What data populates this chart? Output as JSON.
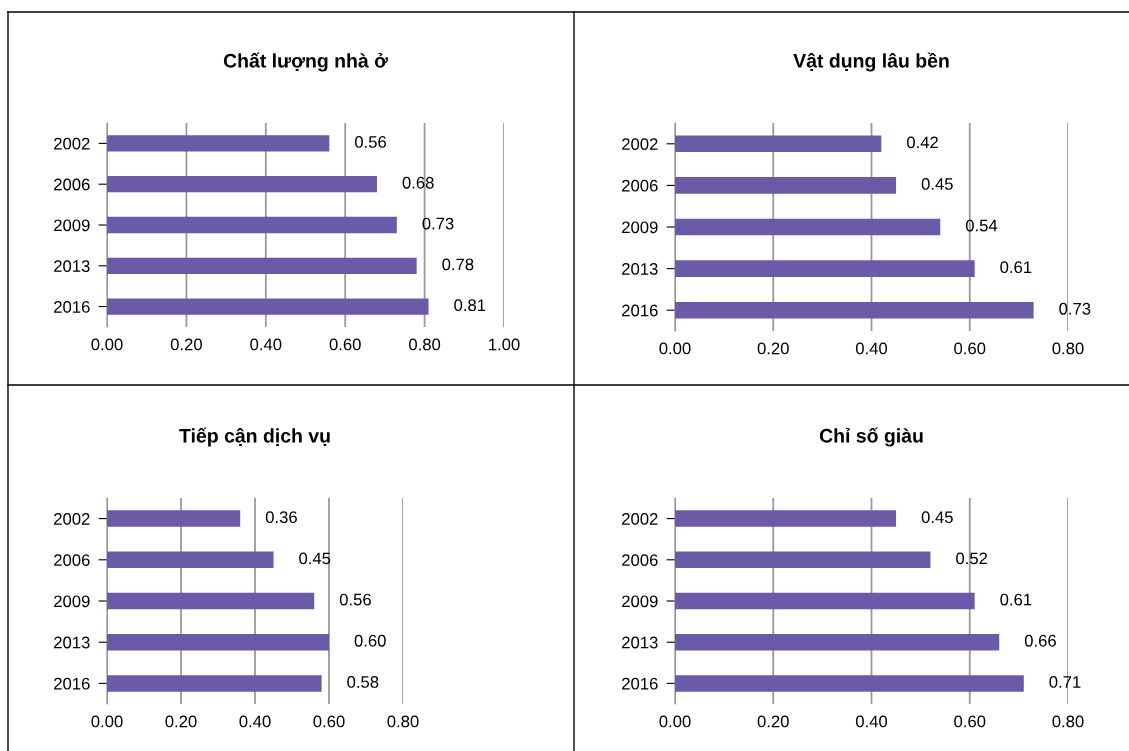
{
  "chart_data": [
    {
      "type": "bar",
      "orientation": "horizontal",
      "title": "Chất lượng nhà ở",
      "categories": [
        "2002",
        "2006",
        "2009",
        "2013",
        "2016"
      ],
      "values": [
        0.56,
        0.68,
        0.73,
        0.78,
        0.81
      ],
      "value_labels": [
        "0.56",
        "0.68",
        "0.73",
        "0.78",
        "0.81"
      ],
      "color": "#6a5aa8",
      "xlim": [
        0,
        1
      ],
      "xticks": [
        {
          "value": 0,
          "label": "0.00"
        },
        {
          "value": 0.2,
          "label": "0.20"
        },
        {
          "value": 0.4,
          "label": "0.40"
        },
        {
          "value": 0.6,
          "label": "0.60"
        },
        {
          "value": 0.8,
          "label": "0.80"
        },
        {
          "value": 1,
          "label": "1.00"
        }
      ],
      "grid": "x",
      "legend": false
    },
    {
      "type": "bar",
      "orientation": "horizontal",
      "title": "Vật dụng lâu bền",
      "categories": [
        "2002",
        "2006",
        "2009",
        "2013",
        "2016"
      ],
      "values": [
        0.42,
        0.45,
        0.54,
        0.61,
        0.73
      ],
      "value_labels": [
        "0.42",
        "0.45",
        "0.54",
        "0.61",
        "0.73"
      ],
      "color": "#6a5aa8",
      "xlim": [
        0,
        0.8
      ],
      "xticks": [
        {
          "value": 0,
          "label": "0.00"
        },
        {
          "value": 0.2,
          "label": "0.20"
        },
        {
          "value": 0.4,
          "label": "0.40"
        },
        {
          "value": 0.6,
          "label": "0.60"
        },
        {
          "value": 0.8,
          "label": "0.80"
        }
      ],
      "grid": "x",
      "legend": false
    },
    {
      "type": "bar",
      "orientation": "horizontal",
      "title": "Tiếp cận dịch vụ",
      "categories": [
        "2002",
        "2006",
        "2009",
        "2013",
        "2016"
      ],
      "values": [
        0.36,
        0.45,
        0.56,
        0.6,
        0.58
      ],
      "value_labels": [
        "0.36",
        "0.45",
        "0.56",
        "0.60",
        "0.58"
      ],
      "color": "#6a5aa8",
      "xlim": [
        0,
        0.8
      ],
      "xticks": [
        {
          "value": 0,
          "label": "0.00"
        },
        {
          "value": 0.2,
          "label": "0.20"
        },
        {
          "value": 0.4,
          "label": "0.40"
        },
        {
          "value": 0.6,
          "label": "0.60"
        },
        {
          "value": 0.8,
          "label": "0.80"
        }
      ],
      "grid": "x",
      "legend": false
    },
    {
      "type": "bar",
      "orientation": "horizontal",
      "title": "Chỉ số giàu",
      "categories": [
        "2002",
        "2006",
        "2009",
        "2013",
        "2016"
      ],
      "values": [
        0.45,
        0.52,
        0.61,
        0.66,
        0.71
      ],
      "value_labels": [
        "0.45",
        "0.52",
        "0.61",
        "0.66",
        "0.71"
      ],
      "color": "#6a5aa8",
      "xlim": [
        0,
        0.8
      ],
      "xticks": [
        {
          "value": 0,
          "label": "0.00"
        },
        {
          "value": 0.2,
          "label": "0.20"
        },
        {
          "value": 0.4,
          "label": "0.40"
        },
        {
          "value": 0.6,
          "label": "0.60"
        },
        {
          "value": 0.8,
          "label": "0.80"
        }
      ],
      "grid": "x",
      "legend": false
    }
  ]
}
